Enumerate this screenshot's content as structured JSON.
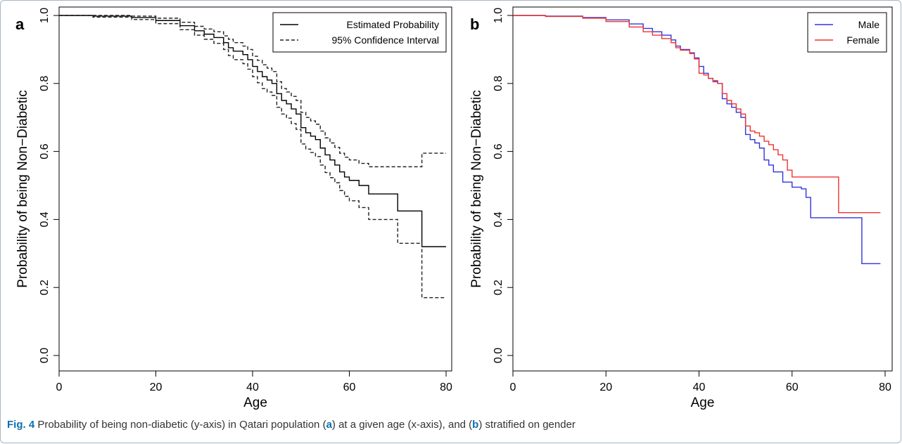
{
  "figure": {
    "caption_label": "Fig. 4",
    "caption_parts": [
      {
        "t": "Probability of being non-diabetic (y-axis) in Qatari population (",
        "b": false
      },
      {
        "t": "a",
        "b": true
      },
      {
        "t": ") at a given age (x-axis), and (",
        "b": false
      },
      {
        "t": "b",
        "b": true
      },
      {
        "t": ") stratified on gender",
        "b": false
      }
    ]
  },
  "colors": {
    "male": "#3333dd",
    "female": "#ee3333",
    "estimate": "#000000",
    "ci": "#222222"
  },
  "chart_data": [
    {
      "panel": "a",
      "type": "line",
      "xlabel": "Age",
      "ylabel": "Probability of being Non−Diabetic",
      "xlim": [
        0,
        80
      ],
      "ylim": [
        0,
        1
      ],
      "xticks": [
        0,
        20,
        40,
        60,
        80
      ],
      "yticks": [
        0.0,
        0.2,
        0.4,
        0.6,
        0.8,
        1.0
      ],
      "ytick_labels": [
        "0.0",
        "0.2",
        "0.4",
        "0.6",
        "0.8",
        "1.0"
      ],
      "legend": "top-right",
      "series": [
        {
          "name": "Estimated Probability",
          "style": "solid",
          "color": "#000000",
          "step": true,
          "x": [
            0,
            7,
            15,
            20,
            25,
            28,
            30,
            32,
            34,
            35,
            36,
            38,
            39,
            40,
            41,
            42,
            43,
            44,
            45,
            46,
            47,
            48,
            49,
            50,
            51,
            52,
            53,
            54,
            55,
            56,
            57,
            58,
            59,
            60,
            62,
            64,
            70,
            75,
            80
          ],
          "y": [
            1.0,
            0.998,
            0.994,
            0.985,
            0.97,
            0.955,
            0.945,
            0.935,
            0.92,
            0.905,
            0.895,
            0.885,
            0.87,
            0.85,
            0.835,
            0.82,
            0.81,
            0.8,
            0.77,
            0.75,
            0.74,
            0.725,
            0.71,
            0.67,
            0.655,
            0.645,
            0.635,
            0.61,
            0.59,
            0.575,
            0.56,
            0.54,
            0.525,
            0.515,
            0.5,
            0.475,
            0.425,
            0.32,
            0.32
          ]
        },
        {
          "name": "95% Confidence Interval",
          "style": "dashed",
          "color": "#222222",
          "step": true,
          "x": [
            0,
            7,
            15,
            20,
            25,
            28,
            30,
            32,
            34,
            35,
            36,
            38,
            39,
            40,
            41,
            42,
            43,
            44,
            45,
            46,
            47,
            48,
            49,
            50,
            51,
            52,
            53,
            54,
            55,
            56,
            57,
            58,
            59,
            60,
            62,
            64,
            70,
            75,
            80
          ],
          "y": [
            1.0,
            1.0,
            0.998,
            0.992,
            0.98,
            0.968,
            0.96,
            0.952,
            0.94,
            0.93,
            0.92,
            0.91,
            0.9,
            0.88,
            0.868,
            0.855,
            0.845,
            0.835,
            0.805,
            0.785,
            0.775,
            0.762,
            0.75,
            0.715,
            0.7,
            0.69,
            0.68,
            0.66,
            0.64,
            0.625,
            0.612,
            0.595,
            0.583,
            0.575,
            0.565,
            0.555,
            0.555,
            0.595,
            0.595
          ]
        },
        {
          "name": "",
          "style": "dashed",
          "color": "#222222",
          "step": true,
          "x": [
            0,
            7,
            15,
            20,
            25,
            28,
            30,
            32,
            34,
            35,
            36,
            38,
            39,
            40,
            41,
            42,
            43,
            44,
            45,
            46,
            47,
            48,
            49,
            50,
            51,
            52,
            53,
            54,
            55,
            56,
            57,
            58,
            59,
            60,
            62,
            64,
            70,
            75,
            80
          ],
          "y": [
            1.0,
            0.995,
            0.988,
            0.976,
            0.958,
            0.942,
            0.93,
            0.918,
            0.9,
            0.882,
            0.87,
            0.858,
            0.842,
            0.82,
            0.802,
            0.785,
            0.775,
            0.765,
            0.73,
            0.71,
            0.698,
            0.682,
            0.665,
            0.622,
            0.607,
            0.597,
            0.585,
            0.56,
            0.538,
            0.523,
            0.508,
            0.485,
            0.468,
            0.455,
            0.435,
            0.4,
            0.33,
            0.17,
            0.17
          ]
        }
      ]
    },
    {
      "panel": "b",
      "type": "line",
      "xlabel": "Age",
      "ylabel": "Probability of being Non−Diabetic",
      "xlim": [
        0,
        80
      ],
      "ylim": [
        0,
        1
      ],
      "xticks": [
        0,
        20,
        40,
        60,
        80
      ],
      "yticks": [
        0.0,
        0.2,
        0.4,
        0.6,
        0.8,
        1.0
      ],
      "ytick_labels": [
        "0.0",
        "0.2",
        "0.4",
        "0.6",
        "0.8",
        "1.0"
      ],
      "legend": "top-right",
      "series": [
        {
          "name": "Male",
          "style": "solid",
          "color": "#3333dd",
          "step": true,
          "x": [
            0,
            7,
            15,
            20,
            25,
            28,
            30,
            32,
            34,
            35,
            36,
            38,
            39,
            40,
            41,
            42,
            43,
            44,
            45,
            46,
            47,
            48,
            49,
            50,
            51,
            52,
            53,
            54,
            55,
            56,
            58,
            60,
            62,
            63,
            64,
            70,
            75,
            79
          ],
          "y": [
            1.0,
            0.998,
            0.994,
            0.987,
            0.975,
            0.962,
            0.952,
            0.942,
            0.928,
            0.91,
            0.9,
            0.89,
            0.875,
            0.85,
            0.83,
            0.815,
            0.808,
            0.8,
            0.755,
            0.74,
            0.73,
            0.715,
            0.7,
            0.65,
            0.635,
            0.625,
            0.61,
            0.575,
            0.56,
            0.54,
            0.51,
            0.495,
            0.49,
            0.465,
            0.405,
            0.405,
            0.27,
            0.27
          ]
        },
        {
          "name": "Female",
          "style": "solid",
          "color": "#ee3333",
          "step": true,
          "x": [
            0,
            7,
            15,
            20,
            25,
            28,
            30,
            32,
            34,
            35,
            36,
            38,
            39,
            40,
            41,
            42,
            43,
            44,
            45,
            46,
            47,
            48,
            49,
            50,
            51,
            52,
            53,
            54,
            55,
            56,
            57,
            58,
            59,
            60,
            65,
            70,
            79
          ],
          "y": [
            1.0,
            0.997,
            0.992,
            0.982,
            0.966,
            0.952,
            0.942,
            0.932,
            0.92,
            0.905,
            0.898,
            0.888,
            0.872,
            0.83,
            0.825,
            0.815,
            0.805,
            0.8,
            0.77,
            0.75,
            0.74,
            0.725,
            0.71,
            0.675,
            0.66,
            0.655,
            0.645,
            0.63,
            0.62,
            0.605,
            0.59,
            0.575,
            0.545,
            0.525,
            0.525,
            0.42,
            0.42
          ]
        }
      ]
    }
  ]
}
